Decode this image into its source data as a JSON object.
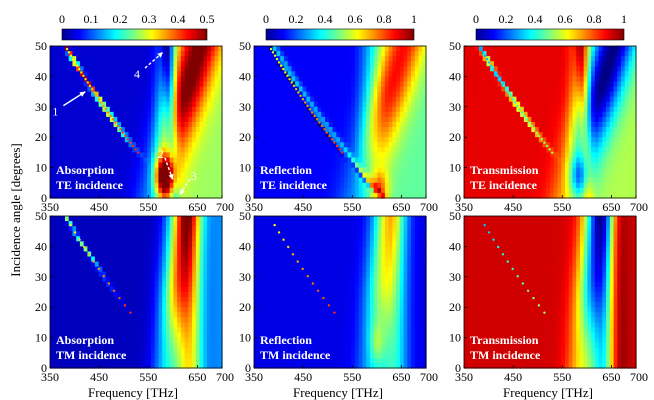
{
  "chart_data": {
    "type": "heatmap",
    "xlabel": "Frequency [THz]",
    "ylabel": "Incidence angle [degrees]",
    "xticks": [
      "350",
      "450",
      "550",
      "650",
      "700"
    ],
    "xlim": [
      350,
      700
    ],
    "yticks": [
      "0",
      "10",
      "20",
      "30",
      "40",
      "50"
    ],
    "ylim": [
      0,
      50
    ],
    "colorbars": [
      {
        "ticks": [
          "0",
          "0.1",
          "0.2",
          "0.3",
          "0.4",
          "0.5"
        ],
        "range": [
          0,
          0.5
        ]
      },
      {
        "ticks": [
          "0",
          "0.2",
          "0.4",
          "0.6",
          "0.8",
          "1"
        ],
        "range": [
          0,
          1
        ]
      },
      {
        "ticks": [
          "0",
          "0.2",
          "0.4",
          "0.6",
          "0.8",
          "1"
        ],
        "range": [
          0,
          1
        ]
      }
    ],
    "panels": [
      {
        "quantity": "absorption",
        "polarization": "TE",
        "label1": "Absorption",
        "label2": "TE incidence",
        "colorbar": 0
      },
      {
        "quantity": "reflection",
        "polarization": "TE",
        "label1": "Reflection",
        "label2": "TE incidence",
        "colorbar": 1
      },
      {
        "quantity": "transmission",
        "polarization": "TE",
        "label1": "Transmission",
        "label2": "TE incidence",
        "colorbar": 2
      },
      {
        "quantity": "absorption",
        "polarization": "TM",
        "label1": "Absorption",
        "label2": "TM incidence",
        "colorbar": 0
      },
      {
        "quantity": "reflection",
        "polarization": "TM",
        "label1": "Reflection",
        "label2": "TM incidence",
        "colorbar": 1
      },
      {
        "quantity": "transmission",
        "polarization": "TM",
        "label1": "Transmission",
        "label2": "TM incidence",
        "colorbar": 2
      }
    ],
    "annotations": [
      {
        "text": "1",
        "panel": 0,
        "freq": 422,
        "angle": 35
      },
      {
        "text": "2",
        "panel": 0,
        "freq": 600,
        "angle": 6
      },
      {
        "text": "3",
        "panel": 0,
        "freq": 614,
        "angle": 1
      },
      {
        "text": "4",
        "panel": 0,
        "freq": 580,
        "angle": 48
      }
    ]
  }
}
